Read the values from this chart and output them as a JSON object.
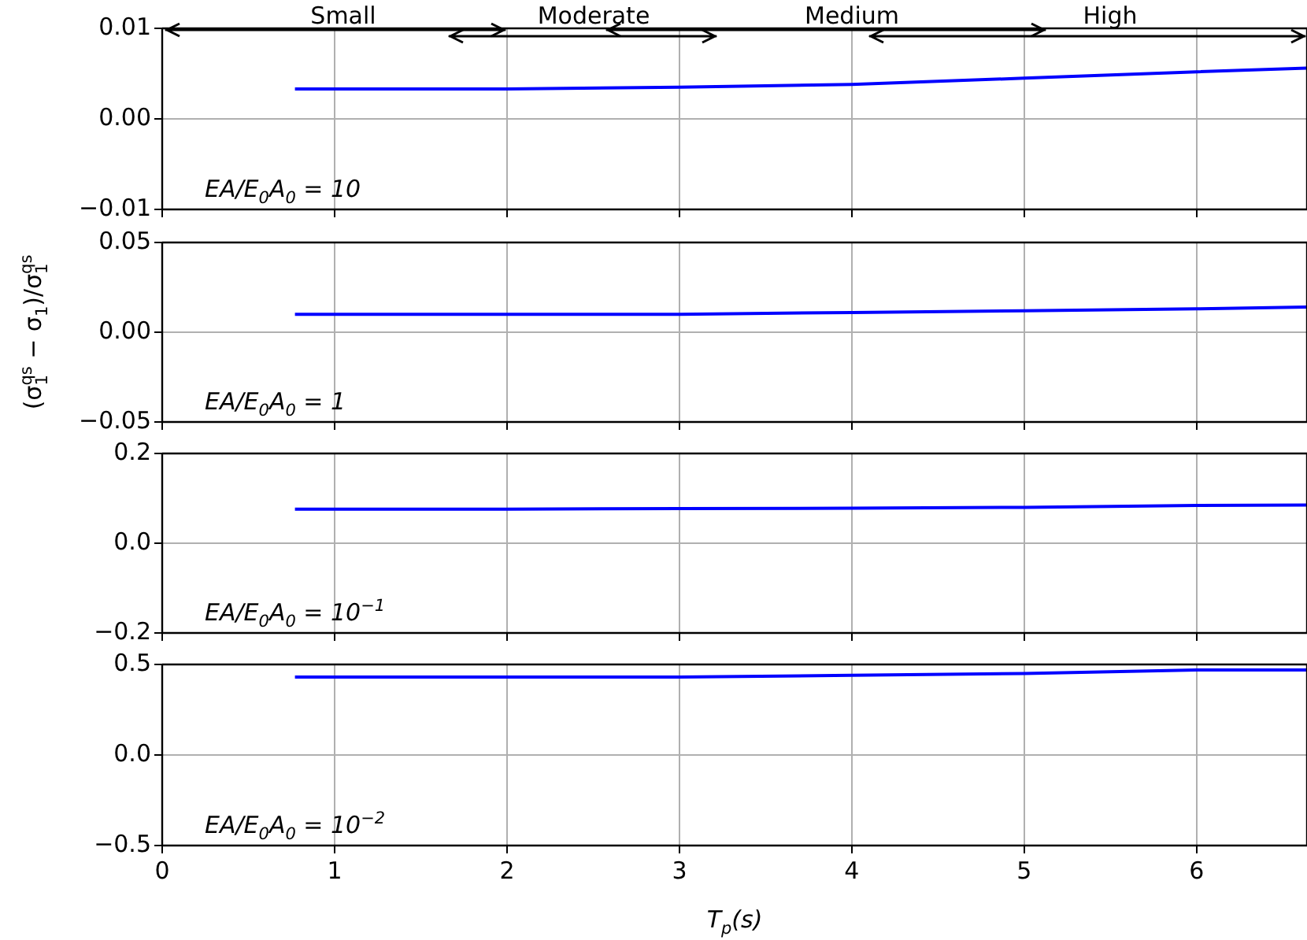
{
  "chart_data": [
    {
      "type": "line",
      "x": [
        0.77,
        1,
        2,
        3,
        4,
        5,
        6,
        6.64
      ],
      "xlim": [
        0,
        6.64
      ],
      "xticks": [
        0,
        1,
        2,
        3,
        4,
        5,
        6
      ],
      "ylim": [
        -0.01,
        0.01
      ],
      "yticks": [
        {
          "value": -0.01,
          "label": "−0.01"
        },
        {
          "value": 0,
          "label": "0.00"
        },
        0.01
      ],
      "grid": true,
      "tick_labels": "y",
      "series": [
        {
          "color": "#0000ff",
          "values": [
            0.0033,
            0.0033,
            0.0033,
            0.0035,
            0.0038,
            0.0045,
            0.0052,
            0.0056
          ]
        }
      ],
      "annotations": [
        "EA/E$_{0}$A$_{0}$ = 10",
        "Small",
        "Moderate",
        "Medium",
        "High"
      ]
    },
    {
      "type": "line",
      "x": [
        0.77,
        1,
        2,
        3,
        4,
        5,
        6,
        6.64
      ],
      "xlim": [
        0,
        6.64
      ],
      "xticks": [
        0,
        1,
        2,
        3,
        4,
        5,
        6
      ],
      "ylim": [
        -0.05,
        0.05
      ],
      "yticks": [
        {
          "value": -0.05,
          "label": "−0.05"
        },
        {
          "value": 0,
          "label": "0.00"
        },
        0.05
      ],
      "grid": true,
      "tick_labels": "y",
      "ylabel": "(σ$_{1}$$^{qs}$ − σ$_{1}$)/σ$_{1}$$^{qs}$",
      "series": [
        {
          "color": "#0000ff",
          "values": [
            0.01,
            0.01,
            0.01,
            0.01,
            0.011,
            0.012,
            0.013,
            0.014
          ]
        }
      ],
      "annotations": [
        "EA/E$_{0}$A$_{0}$ = 1"
      ]
    },
    {
      "type": "line",
      "x": [
        0.77,
        1,
        2,
        3,
        4,
        5,
        6,
        6.64
      ],
      "xlim": [
        0,
        6.64
      ],
      "xticks": [
        0,
        1,
        2,
        3,
        4,
        5,
        6
      ],
      "ylim": [
        -0.2,
        0.2
      ],
      "yticks": [
        {
          "value": -0.2,
          "label": "−0.2"
        },
        {
          "value": 0,
          "label": "0.0"
        },
        0.2
      ],
      "grid": true,
      "tick_labels": "y",
      "series": [
        {
          "color": "#0000ff",
          "values": [
            0.076,
            0.076,
            0.076,
            0.077,
            0.078,
            0.08,
            0.084,
            0.085
          ]
        }
      ],
      "annotations": [
        "EA/E$_{0}$A$_{0}$ = 10$^{−1}$"
      ]
    },
    {
      "type": "line",
      "x": [
        0.77,
        1,
        2,
        3,
        4,
        5,
        6,
        6.64
      ],
      "xlim": [
        0,
        6.64
      ],
      "xticks": [
        0,
        1,
        2,
        3,
        4,
        5,
        6
      ],
      "ylim": [
        -0.5,
        0.5
      ],
      "yticks": [
        {
          "value": -0.5,
          "label": "−0.5"
        },
        {
          "value": 0,
          "label": "0.0"
        },
        0.5
      ],
      "grid": true,
      "xlabel": "T$_{p}$(s)",
      "series": [
        {
          "color": "#0000ff",
          "values": [
            0.43,
            0.43,
            0.43,
            0.43,
            0.44,
            0.45,
            0.47,
            0.47
          ]
        }
      ],
      "annotations": [
        "EA/E$_{0}$A$_{0}$ = 10$^{−2}$"
      ]
    }
  ]
}
